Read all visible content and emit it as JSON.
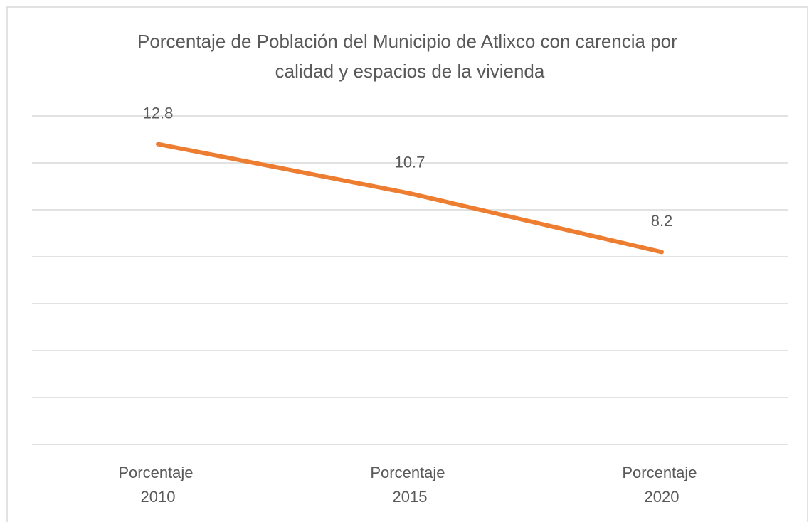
{
  "chart_data": {
    "type": "line",
    "title": "Porcentaje de Población del Municipio de Atlixco con carencia por calidad y espacios de la vivienda",
    "categories": [
      "Porcentaje 2010",
      "Porcentaje 2015",
      "Porcentaje 2020"
    ],
    "values": [
      12.8,
      10.7,
      8.2
    ],
    "color": "#ED7D31",
    "ylim": [
      0,
      14
    ],
    "yticks": [
      0,
      2,
      4,
      6,
      8,
      10,
      12,
      14
    ],
    "grid": true
  }
}
